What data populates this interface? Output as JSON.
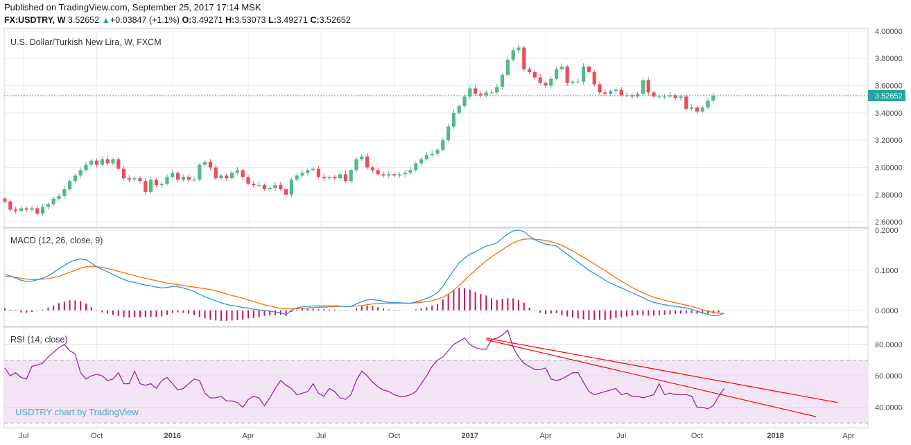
{
  "header": {
    "published": "Published on TradingView.com, September 25, 2017 17:14 MSK",
    "symbol": "FX:USDTRY, W",
    "last": "3.52652",
    "change_arrow": "▲",
    "change": "+0.03847 (+1.1%)",
    "o_label": "O:",
    "o": "3.49271",
    "h_label": "H:",
    "h": "3.53073",
    "l_label": "L:",
    "l": "3.49271",
    "c_label": "C:",
    "c": "3.52652"
  },
  "colors": {
    "up": "#26a69a",
    "down": "#ef5350",
    "upCandle": "#53b987",
    "downCandle": "#eb4d5c",
    "macd": "#2196f3",
    "signal": "#ff6d00",
    "hist": "#c2185b",
    "rsi": "#9c27b0",
    "trend": "#ff0000",
    "rsiBand": "#f3e5f5"
  },
  "chart_data": [
    {
      "type": "candlestick",
      "title": "U.S. Dollar/Turkish New Lira, W, FXCM",
      "price_label": "3.52652",
      "ylim": [
        2.56,
        4.02
      ],
      "yticks": [
        "4.00000",
        "3.80000",
        "3.60000",
        "3.40000",
        "3.20000",
        "3.00000",
        "2.80000",
        "2.60000"
      ],
      "ytick_values": [
        4.0,
        3.8,
        3.6,
        3.4,
        3.2,
        3.0,
        2.8,
        2.6
      ],
      "xticks": [
        "Jul",
        "Oct",
        "2016",
        "Apr",
        "Jul",
        "Oct",
        "2017",
        "Apr",
        "Jul",
        "Oct",
        "2018",
        "Apr"
      ],
      "xtick_weeks": [
        3.5,
        17,
        31,
        45,
        58.5,
        72,
        86,
        100,
        114,
        128,
        142.5,
        156
      ],
      "close": [
        2.75,
        2.69,
        2.68,
        2.7,
        2.69,
        2.7,
        2.66,
        2.71,
        2.73,
        2.77,
        2.79,
        2.84,
        2.9,
        2.94,
        2.98,
        3.02,
        3.05,
        3.02,
        3.06,
        3.03,
        3.06,
        2.99,
        2.92,
        2.91,
        2.92,
        2.9,
        2.82,
        2.91,
        2.87,
        2.88,
        2.93,
        2.96,
        2.91,
        2.93,
        2.91,
        2.91,
        3.02,
        3.04,
        3.0,
        2.92,
        2.94,
        2.92,
        2.96,
        2.98,
        2.93,
        2.88,
        2.87,
        2.87,
        2.84,
        2.85,
        2.87,
        2.84,
        2.8,
        2.91,
        2.94,
        2.96,
        2.98,
        2.99,
        2.93,
        2.92,
        2.93,
        2.92,
        2.95,
        2.9,
        2.98,
        3.06,
        3.08,
        3.0,
        2.98,
        2.95,
        2.94,
        2.95,
        2.94,
        2.95,
        2.96,
        2.98,
        3.03,
        3.06,
        3.09,
        3.1,
        3.13,
        3.2,
        3.3,
        3.4,
        3.45,
        3.52,
        3.58,
        3.54,
        3.53,
        3.55,
        3.55,
        3.59,
        3.68,
        3.79,
        3.86,
        3.88,
        3.72,
        3.7,
        3.66,
        3.62,
        3.6,
        3.65,
        3.72,
        3.74,
        3.62,
        3.63,
        3.63,
        3.74,
        3.7,
        3.61,
        3.55,
        3.54,
        3.56,
        3.57,
        3.53,
        3.53,
        3.52,
        3.54,
        3.64,
        3.55,
        3.52,
        3.52,
        3.52,
        3.53,
        3.51,
        3.52,
        3.43,
        3.44,
        3.41,
        3.44,
        3.49,
        3.5265
      ],
      "open_note": "each candle opens at previous close; first open 2.77"
    },
    {
      "type": "line",
      "title": "MACD (12, 26, close, 9)",
      "ylim": [
        -0.04,
        0.205
      ],
      "yticks": [
        "0.2000",
        "0.1000",
        "0.0000"
      ],
      "ytick_values": [
        0.2,
        0.1,
        0.0
      ],
      "series": [
        {
          "values": [
            0.09,
            0.086,
            0.08,
            0.075,
            0.072,
            0.073,
            0.076,
            0.08,
            0.086,
            0.094,
            0.103,
            0.112,
            0.12,
            0.125,
            0.128,
            0.126,
            0.118,
            0.108,
            0.102,
            0.096,
            0.09,
            0.083,
            0.077,
            0.072,
            0.07,
            0.066,
            0.063,
            0.061,
            0.058,
            0.056,
            0.057,
            0.06,
            0.059,
            0.056,
            0.052,
            0.047,
            0.04,
            0.034,
            0.029,
            0.024,
            0.019,
            0.015,
            0.012,
            0.01,
            0.007,
            0.006,
            0.003,
            0.001,
            0.0,
            -0.002,
            -0.004,
            -0.006,
            -0.01,
            0.0,
            0.006,
            0.009,
            0.01,
            0.011,
            0.011,
            0.011,
            0.011,
            0.011,
            0.011,
            0.009,
            0.01,
            0.016,
            0.022,
            0.026,
            0.027,
            0.025,
            0.023,
            0.02,
            0.019,
            0.019,
            0.018,
            0.018,
            0.021,
            0.025,
            0.03,
            0.036,
            0.044,
            0.06,
            0.08,
            0.1,
            0.118,
            0.13,
            0.14,
            0.146,
            0.153,
            0.16,
            0.163,
            0.168,
            0.18,
            0.19,
            0.198,
            0.2,
            0.196,
            0.185,
            0.176,
            0.17,
            0.165,
            0.163,
            0.16,
            0.15,
            0.14,
            0.13,
            0.12,
            0.11,
            0.1,
            0.092,
            0.084,
            0.075,
            0.068,
            0.062,
            0.056,
            0.05,
            0.044,
            0.038,
            0.032,
            0.025,
            0.02,
            0.017,
            0.014,
            0.012,
            0.01,
            0.008,
            0.006,
            0.003,
            -0.002,
            -0.006,
            -0.01,
            -0.013,
            -0.012,
            -0.007
          ]
        },
        {
          "values": [
            0.085,
            0.084,
            0.082,
            0.08,
            0.078,
            0.077,
            0.077,
            0.078,
            0.079,
            0.082,
            0.085,
            0.09,
            0.095,
            0.1,
            0.105,
            0.109,
            0.11,
            0.109,
            0.107,
            0.104,
            0.101,
            0.097,
            0.094,
            0.09,
            0.087,
            0.083,
            0.08,
            0.077,
            0.074,
            0.071,
            0.068,
            0.066,
            0.064,
            0.062,
            0.06,
            0.058,
            0.056,
            0.054,
            0.052,
            0.049,
            0.045,
            0.041,
            0.037,
            0.034,
            0.03,
            0.026,
            0.022,
            0.018,
            0.014,
            0.011,
            0.008,
            0.005,
            0.004,
            0.004,
            0.004,
            0.005,
            0.006,
            0.007,
            0.008,
            0.008,
            0.009,
            0.009,
            0.01,
            0.01,
            0.01,
            0.011,
            0.012,
            0.014,
            0.016,
            0.017,
            0.018,
            0.018,
            0.018,
            0.018,
            0.018,
            0.018,
            0.019,
            0.02,
            0.022,
            0.024,
            0.028,
            0.033,
            0.04,
            0.05,
            0.062,
            0.075,
            0.088,
            0.1,
            0.112,
            0.123,
            0.133,
            0.142,
            0.151,
            0.16,
            0.168,
            0.174,
            0.177,
            0.178,
            0.177,
            0.176,
            0.174,
            0.171,
            0.167,
            0.162,
            0.155,
            0.148,
            0.14,
            0.132,
            0.124,
            0.116,
            0.107,
            0.099,
            0.09,
            0.081,
            0.073,
            0.065,
            0.057,
            0.05,
            0.044,
            0.038,
            0.033,
            0.029,
            0.025,
            0.022,
            0.019,
            0.016,
            0.013,
            0.01,
            0.006,
            0.002,
            -0.002,
            -0.005,
            -0.007,
            -0.007
          ]
        }
      ],
      "histogram_note": "histogram = macd - signal"
    },
    {
      "type": "line",
      "title": "RSI (14, close)",
      "ylim": [
        27,
        91
      ],
      "yticks": [
        "80.0000",
        "60.0000",
        "40.0000"
      ],
      "ytick_values": [
        80,
        60,
        40
      ],
      "band": [
        30,
        70
      ],
      "values": [
        65,
        60,
        62,
        59,
        58,
        66,
        67,
        68,
        72,
        75,
        78,
        80,
        76,
        74,
        62,
        58,
        60,
        61,
        60,
        57,
        58,
        62,
        55,
        55,
        63,
        55,
        54,
        55,
        52,
        57,
        59,
        55,
        51,
        52,
        55,
        58,
        57,
        49,
        46,
        46,
        47,
        44,
        44,
        43,
        40,
        45,
        47,
        46,
        41,
        46,
        52,
        57,
        54,
        52,
        48,
        49,
        50,
        55,
        49,
        47,
        52,
        50,
        46,
        45,
        48,
        57,
        63,
        60,
        56,
        53,
        51,
        50,
        48,
        47,
        47,
        48,
        50,
        55,
        60,
        66,
        70,
        72,
        76,
        80,
        82,
        84,
        80,
        78,
        77,
        77,
        83,
        84,
        86,
        89,
        78,
        72,
        68,
        66,
        64,
        64,
        65,
        58,
        57,
        58,
        60,
        62,
        62,
        56,
        50,
        48,
        49,
        50,
        51,
        52,
        48,
        49,
        47,
        47,
        46,
        47,
        48,
        55,
        48,
        49,
        48,
        48,
        48,
        47,
        40,
        40,
        39,
        41,
        47,
        52
      ],
      "trendlines": [
        {
          "from": [
            89,
            84
          ],
          "to": [
            154,
            43
          ]
        },
        {
          "from": [
            89,
            83
          ],
          "to": [
            150,
            34
          ]
        }
      ]
    }
  ],
  "watermark": "USDTRY chart by TradingView"
}
